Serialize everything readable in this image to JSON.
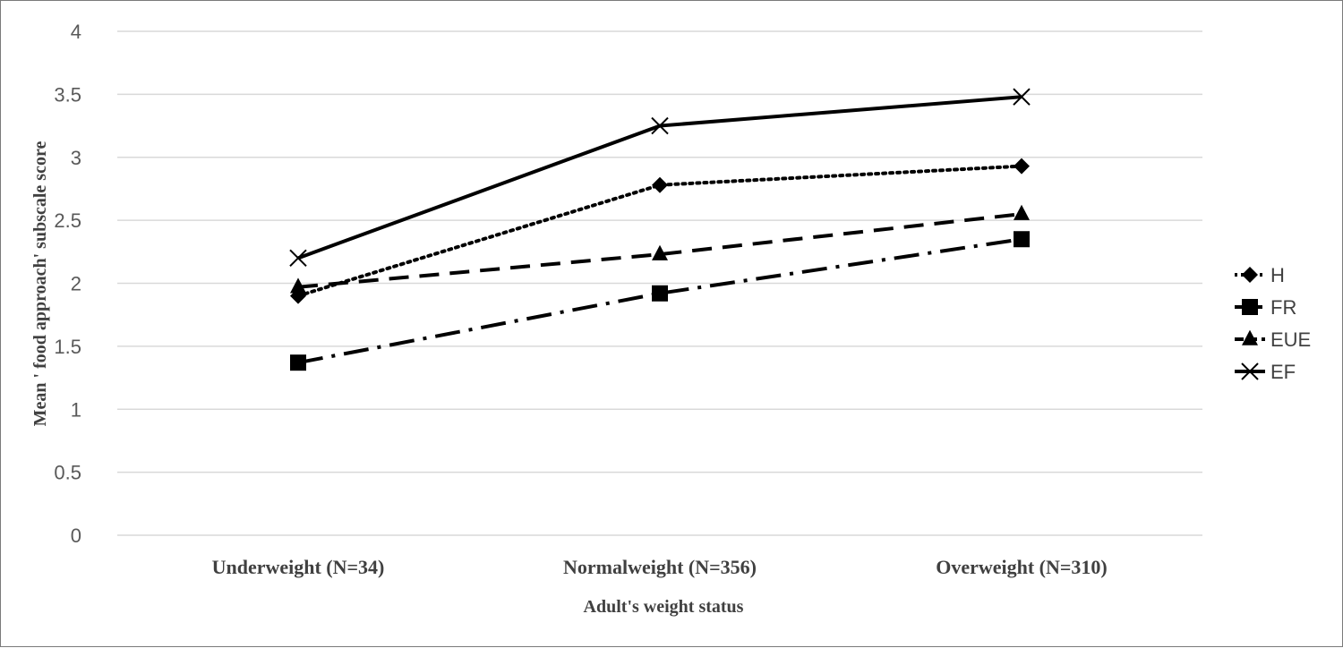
{
  "chart_data": {
    "type": "line",
    "title": "",
    "xlabel": "Adult's weight status",
    "ylabel": "Mean ' food approach' subscale score",
    "categories": [
      "Underweight (N=34)",
      "Normalweight (N=356)",
      "Overweight (N=310)"
    ],
    "ylim": [
      0,
      4
    ],
    "yticks": [
      "0",
      "0.5",
      "1",
      "1.5",
      "2",
      "2.5",
      "3",
      "3.5",
      "4"
    ],
    "grid": true,
    "legend_position": "right",
    "series": [
      {
        "name": "H",
        "values": [
          1.9,
          2.78,
          2.93
        ],
        "marker": "diamond",
        "dash": "dotted",
        "color": "#000000"
      },
      {
        "name": "FR",
        "values": [
          1.37,
          1.92,
          2.35
        ],
        "marker": "square",
        "dash": "dash-dot",
        "color": "#000000"
      },
      {
        "name": "EUE",
        "values": [
          1.97,
          2.23,
          2.55
        ],
        "marker": "triangle",
        "dash": "dashed",
        "color": "#000000"
      },
      {
        "name": "EF",
        "values": [
          2.2,
          3.25,
          3.48
        ],
        "marker": "x",
        "dash": "solid",
        "color": "#000000"
      }
    ]
  }
}
